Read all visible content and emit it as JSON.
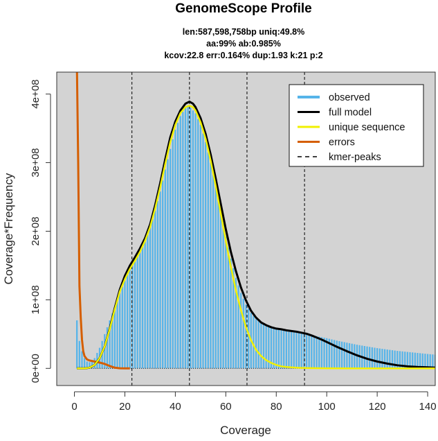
{
  "chart_data": {
    "type": "area",
    "title": "GenomeScope Profile",
    "subtitle_lines": [
      "len:587,598,758bp uniq:49.8%",
      "aa:99% ab:0.985%",
      "kcov:22.8 err:0.164%  dup:1.93  k:21 p:2"
    ],
    "xlabel": "Coverage",
    "ylabel": "Coverage*Frequency",
    "xlim": [
      -7,
      143
    ],
    "ylim": [
      -25000000,
      432000000
    ],
    "x_ticks": [
      0,
      20,
      40,
      60,
      80,
      100,
      120,
      140
    ],
    "x_tick_labels": [
      "0",
      "20",
      "40",
      "60",
      "80",
      "100",
      "120",
      "140"
    ],
    "y_ticks": [
      0,
      100000000,
      200000000,
      300000000,
      400000000
    ],
    "y_tick_labels": [
      "0e+00",
      "1e+08",
      "2e+08",
      "3e+08",
      "4e+08"
    ],
    "grid": false,
    "legend_position": "top-right",
    "colors": {
      "panel": "#d3d3d3",
      "observed": "#56b4e9",
      "full_model": "#000000",
      "unique_sequence": "#f0f000",
      "errors": "#d55e00",
      "kmer_peaks": "#000000"
    },
    "kmer_peaks": [
      22.8,
      45.6,
      68.4,
      91.2
    ],
    "series": [
      {
        "name": "observed",
        "x": [
          1,
          2,
          3,
          4,
          5,
          6,
          8,
          10,
          12,
          15,
          18,
          20,
          22,
          24,
          26,
          28,
          30,
          32,
          34,
          36,
          38,
          40,
          42,
          44,
          45,
          46,
          48,
          50,
          52,
          54,
          56,
          58,
          60,
          62,
          64,
          66,
          68,
          70,
          72,
          74,
          76,
          78,
          80,
          84,
          88,
          92,
          96,
          100,
          104,
          108,
          112,
          116,
          120,
          124,
          128,
          132,
          136,
          140,
          143
        ],
        "y": [
          70000000,
          40000000,
          25000000,
          15000000,
          10000000,
          9000000,
          15000000,
          30000000,
          50000000,
          80000000,
          110000000,
          128000000,
          145000000,
          158000000,
          170000000,
          185000000,
          205000000,
          230000000,
          258000000,
          290000000,
          320000000,
          348000000,
          368000000,
          380000000,
          382000000,
          380000000,
          372000000,
          355000000,
          330000000,
          300000000,
          265000000,
          228000000,
          192000000,
          160000000,
          132000000,
          110000000,
          93000000,
          81000000,
          72000000,
          66000000,
          62000000,
          59000000,
          57000000,
          54000000,
          52000000,
          50000000,
          47000000,
          44000000,
          40500000,
          37500000,
          34500000,
          32000000,
          29500000,
          27500000,
          25500000,
          24000000,
          22500000,
          21000000,
          20000000
        ]
      },
      {
        "name": "full model",
        "x": [
          1,
          4,
          6,
          8,
          10,
          12,
          14,
          16,
          18,
          20,
          22,
          24,
          26,
          28,
          30,
          32,
          34,
          36,
          38,
          40,
          42,
          44,
          45.6,
          47,
          48,
          50,
          52,
          54,
          56,
          58,
          60,
          62,
          64,
          66,
          68,
          70,
          72,
          74,
          76,
          78,
          80,
          82,
          84,
          86,
          88,
          90,
          92,
          94,
          96,
          98,
          100,
          104,
          108,
          112,
          116,
          120,
          124,
          128,
          132,
          136,
          140,
          143
        ],
        "y": [
          0,
          0,
          1000000,
          5000000,
          15000000,
          32000000,
          58000000,
          88000000,
          115000000,
          135000000,
          150000000,
          162000000,
          175000000,
          190000000,
          210000000,
          238000000,
          270000000,
          305000000,
          337000000,
          360000000,
          376000000,
          386000000,
          389000000,
          386000000,
          381000000,
          365000000,
          342000000,
          312000000,
          277000000,
          240000000,
          203000000,
          170000000,
          142000000,
          118000000,
          99000000,
          84000000,
          74000000,
          67000000,
          63000000,
          60000000,
          58000000,
          57000000,
          55500000,
          54500000,
          53500000,
          52000000,
          50500000,
          48000000,
          45000000,
          42000000,
          38500000,
          31500000,
          25000000,
          19000000,
          14000000,
          10000000,
          7000000,
          4500000,
          3000000,
          2000000,
          1500000,
          1000000
        ]
      },
      {
        "name": "unique sequence",
        "x": [
          1,
          4,
          6,
          8,
          10,
          12,
          14,
          16,
          18,
          20,
          22,
          24,
          26,
          28,
          30,
          32,
          34,
          36,
          38,
          40,
          42,
          44,
          45.6,
          47,
          48,
          50,
          52,
          54,
          56,
          58,
          60,
          62,
          64,
          66,
          68,
          70,
          72,
          74,
          76,
          78,
          80,
          82,
          84,
          86,
          88,
          90,
          94,
          100,
          110,
          120,
          130,
          143
        ],
        "y": [
          0,
          0,
          1000000,
          5000000,
          15000000,
          32000000,
          57000000,
          86000000,
          112000000,
          130000000,
          145000000,
          157000000,
          170000000,
          186000000,
          206000000,
          233000000,
          264000000,
          298000000,
          330000000,
          355000000,
          372000000,
          381000000,
          383000000,
          381000000,
          376000000,
          359000000,
          335000000,
          303000000,
          266000000,
          226000000,
          186000000,
          148000000,
          114000000,
          85000000,
          60000000,
          41000000,
          27000000,
          18000000,
          12000000,
          8000000,
          5000000,
          3000000,
          2000000,
          1500000,
          1000000,
          700000,
          400000,
          200000,
          50000,
          0,
          0,
          0
        ]
      },
      {
        "name": "errors",
        "x": [
          1,
          1.5,
          2,
          2.5,
          3,
          3.5,
          4,
          5,
          6,
          8,
          10,
          12,
          14,
          16,
          18,
          20,
          22
        ],
        "y": [
          440000000,
          300000000,
          120000000,
          75000000,
          42000000,
          25000000,
          18000000,
          13000000,
          11500000,
          10000000,
          8500000,
          6500000,
          3500000,
          1000000,
          200000,
          0,
          0
        ]
      }
    ],
    "legend": [
      {
        "label": "observed",
        "style": "observed"
      },
      {
        "label": "full model",
        "style": "full_model"
      },
      {
        "label": "unique sequence",
        "style": "unique_sequence"
      },
      {
        "label": "errors",
        "style": "errors"
      },
      {
        "label": "kmer-peaks",
        "style": "kmer_peaks"
      }
    ]
  }
}
